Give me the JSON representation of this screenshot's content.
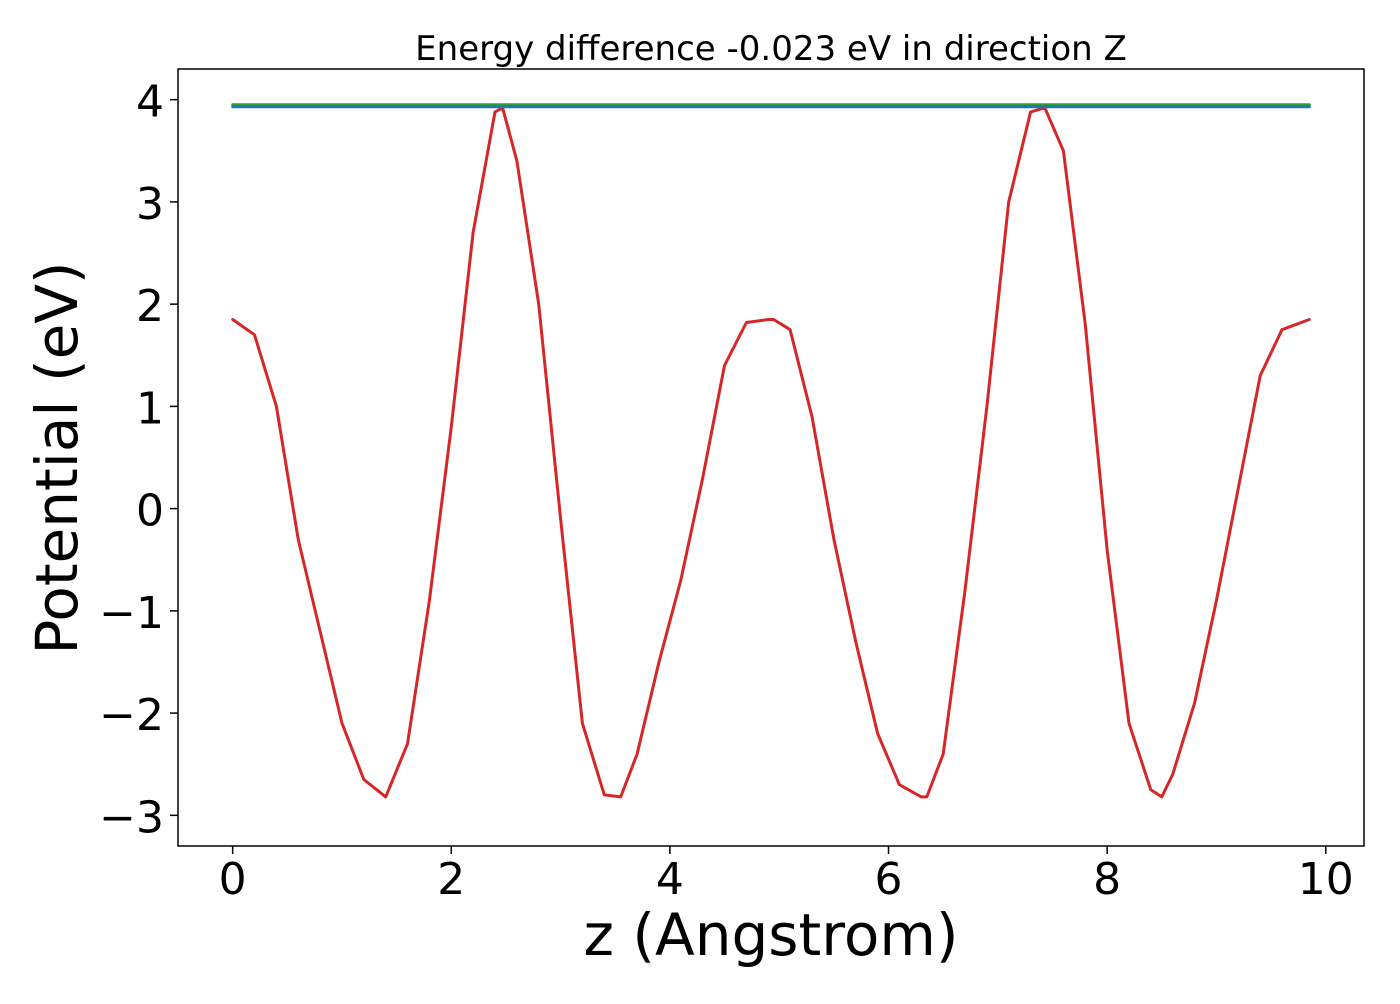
{
  "chart_data": {
    "type": "line",
    "title": "Energy difference -0.023 eV in direction Z",
    "xlabel": "z (Angstrom)",
    "ylabel": "Potential (eV)",
    "xlim": [
      -0.5,
      10.35
    ],
    "ylim": [
      -3.3,
      4.3
    ],
    "xticks": [
      0,
      2,
      4,
      6,
      8,
      10
    ],
    "xtick_labels": [
      "0",
      "2",
      "4",
      "6",
      "8",
      "10"
    ],
    "yticks": [
      -3,
      -2,
      -1,
      0,
      1,
      2,
      3,
      4
    ],
    "ytick_labels": [
      "−3",
      "−2",
      "−1",
      "0",
      "1",
      "2",
      "3",
      "4"
    ],
    "grid": false,
    "legend": "none",
    "series": [
      {
        "color": "#d62728",
        "x": [
          0.0,
          0.2,
          0.4,
          0.6,
          0.8,
          1.0,
          1.2,
          1.4,
          1.6,
          1.8,
          2.0,
          2.2,
          2.4,
          2.47,
          2.6,
          2.8,
          3.0,
          3.2,
          3.4,
          3.55,
          3.7,
          3.9,
          4.1,
          4.3,
          4.5,
          4.7,
          4.9,
          4.95,
          5.1,
          5.3,
          5.5,
          5.7,
          5.9,
          6.1,
          6.3,
          6.35,
          6.5,
          6.7,
          6.9,
          7.1,
          7.3,
          7.43,
          7.6,
          7.8,
          8.0,
          8.2,
          8.4,
          8.5,
          8.6,
          8.8,
          9.0,
          9.2,
          9.4,
          9.6,
          9.85
        ],
        "y": [
          1.85,
          1.7,
          1.0,
          -0.3,
          -1.2,
          -2.1,
          -2.65,
          -2.82,
          -2.3,
          -0.9,
          0.8,
          2.7,
          3.88,
          3.92,
          3.4,
          2.0,
          -0.1,
          -2.1,
          -2.8,
          -2.82,
          -2.4,
          -1.5,
          -0.7,
          0.3,
          1.4,
          1.82,
          1.85,
          1.85,
          1.75,
          0.9,
          -0.3,
          -1.3,
          -2.2,
          -2.7,
          -2.82,
          -2.82,
          -2.4,
          -0.8,
          1.0,
          3.0,
          3.88,
          3.92,
          3.5,
          1.8,
          -0.4,
          -2.1,
          -2.75,
          -2.82,
          -2.6,
          -1.9,
          -0.9,
          0.2,
          1.3,
          1.75,
          1.85
        ]
      },
      {
        "color": "#2ca02c",
        "x": [
          0.0,
          9.85
        ],
        "y": [
          3.95,
          3.95
        ]
      },
      {
        "color": "#1f77b4",
        "x": [
          0.0,
          9.85
        ],
        "y": [
          3.93,
          3.93
        ]
      }
    ]
  }
}
